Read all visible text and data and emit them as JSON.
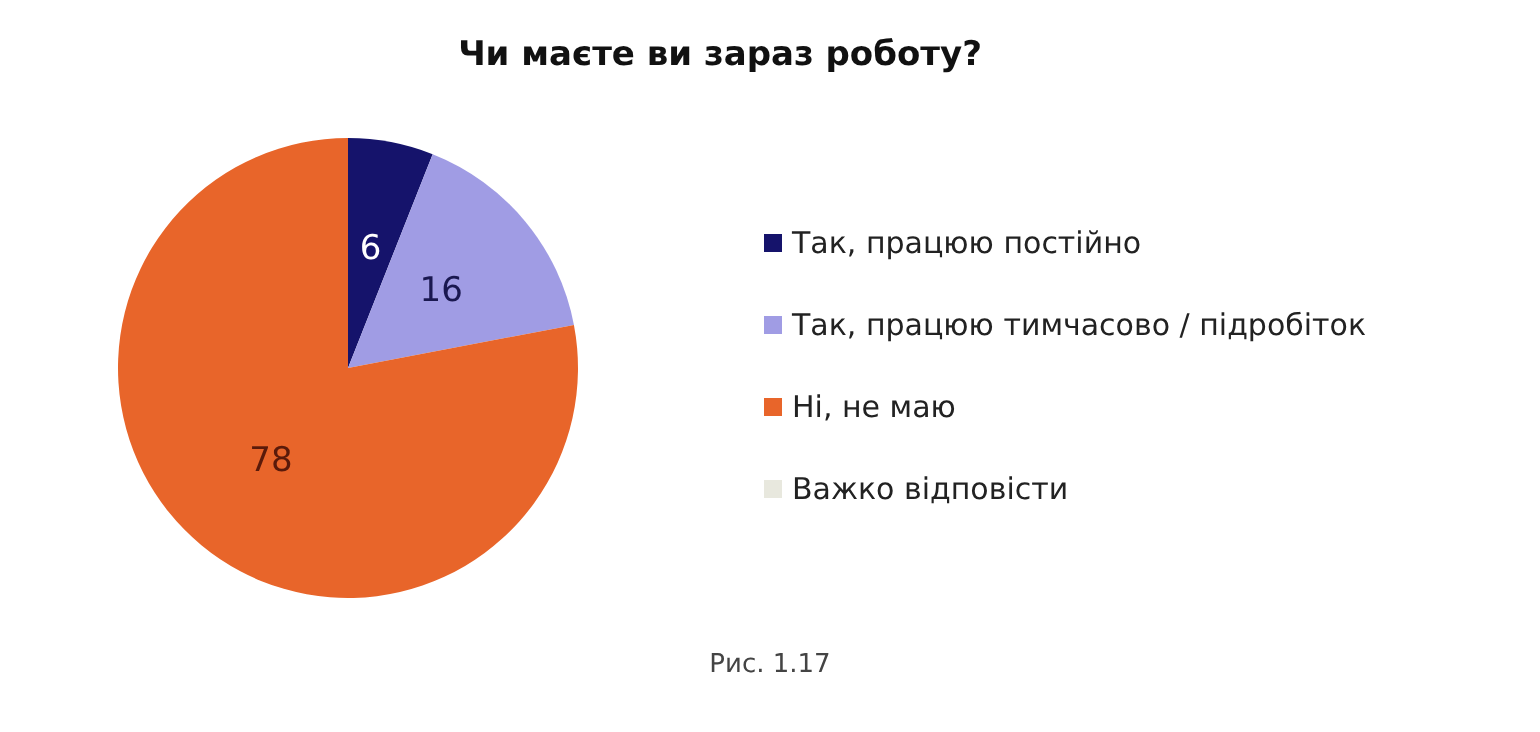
{
  "chart_data": {
    "type": "pie",
    "title": "Чи маєте ви зараз роботу?",
    "categories": [
      "Так, працюю постійно",
      "Так, працюю тимчасово / підробіток",
      "Ні, не маю",
      "Важко відповісти"
    ],
    "values": [
      6,
      16,
      78,
      0
    ],
    "colors": [
      "#15136b",
      "#a09ce4",
      "#e8652a",
      "#e8e8de"
    ],
    "value_labels": [
      "6",
      "16",
      "78",
      null
    ],
    "legend": "right",
    "annotations": [
      "Рис. 1.17"
    ]
  }
}
